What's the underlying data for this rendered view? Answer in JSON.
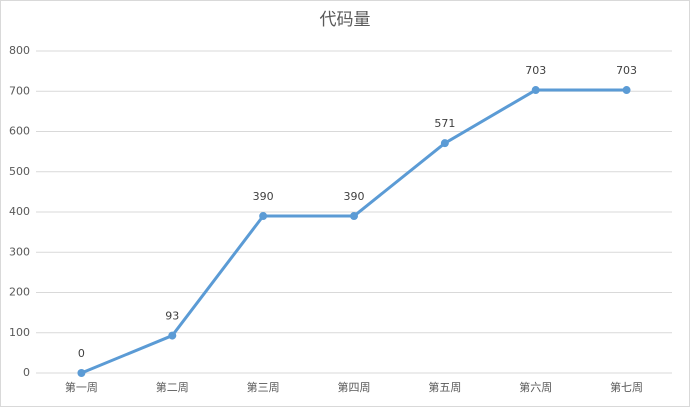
{
  "chart_data": {
    "type": "line",
    "title": "代码量",
    "categories": [
      "第一周",
      "第二周",
      "第三周",
      "第四周",
      "第五周",
      "第六周",
      "第七周"
    ],
    "values": [
      0,
      93,
      390,
      390,
      571,
      703,
      703
    ],
    "color": "#5b9bd5",
    "ylim": [
      0,
      800
    ],
    "yticks": [
      0,
      100,
      200,
      300,
      400,
      500,
      600,
      700,
      800
    ],
    "grid": true,
    "data_labels": true
  }
}
